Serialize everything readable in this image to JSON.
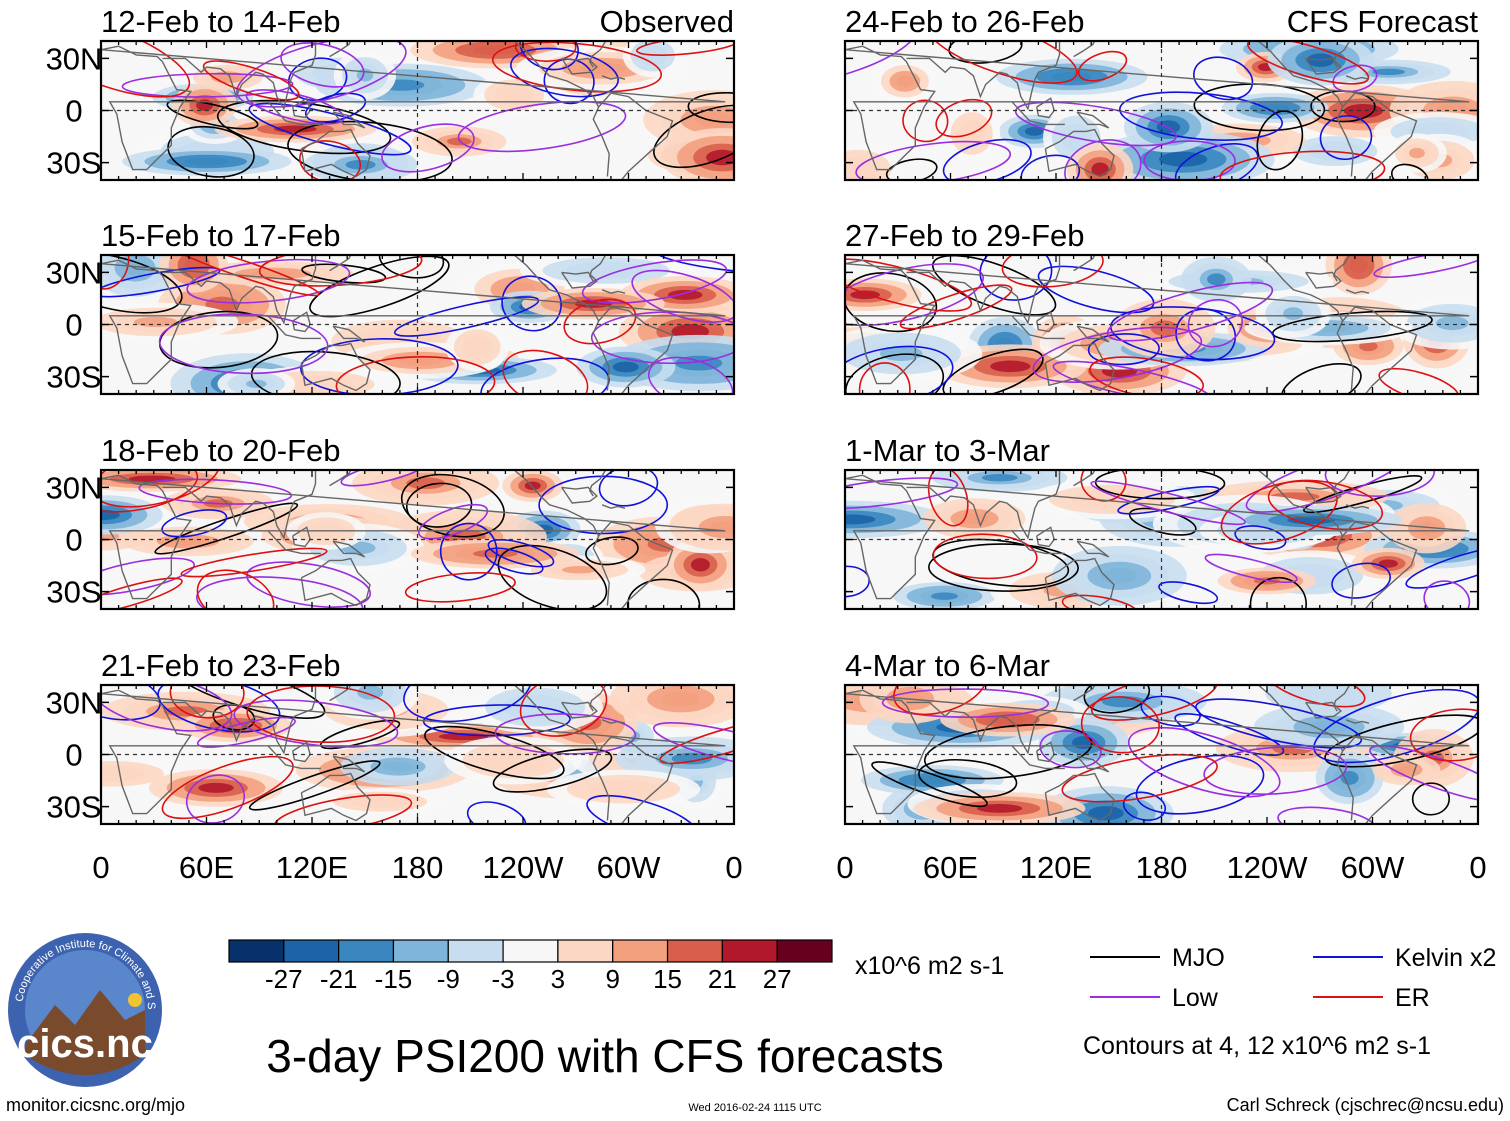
{
  "chart_data": {
    "type": "heatmap",
    "title": "3-day PSI200 with CFS forecasts",
    "variable": "PSI200 anomaly",
    "units": "x10^6 m2 s-1",
    "x_ticks": [
      "0",
      "60E",
      "120E",
      "180",
      "120W",
      "60W",
      "0"
    ],
    "y_ticks": [
      "30N",
      "0",
      "30S"
    ],
    "lon_range": [
      0,
      360
    ],
    "lat_range": [
      -40,
      40
    ],
    "panels_observed_label": "Observed",
    "panels_forecast_label": "CFS Forecast",
    "panels": [
      {
        "period": "12-Feb to 14-Feb",
        "source": "Observed",
        "column": 0,
        "row": 0
      },
      {
        "period": "15-Feb to 17-Feb",
        "source": "Observed",
        "column": 0,
        "row": 1
      },
      {
        "period": "18-Feb to 20-Feb",
        "source": "Observed",
        "column": 0,
        "row": 2
      },
      {
        "period": "21-Feb to 23-Feb",
        "source": "Observed",
        "column": 0,
        "row": 3
      },
      {
        "period": "24-Feb to 26-Feb",
        "source": "CFS Forecast",
        "column": 1,
        "row": 0
      },
      {
        "period": "27-Feb to 29-Feb",
        "source": "CFS Forecast",
        "column": 1,
        "row": 1
      },
      {
        "period": "1-Mar to 3-Mar",
        "source": "CFS Forecast",
        "column": 1,
        "row": 2
      },
      {
        "period": "4-Mar to 6-Mar",
        "source": "CFS Forecast",
        "column": 1,
        "row": 3
      }
    ],
    "colorbar": {
      "tick_labels": [
        "-27",
        "-21",
        "-15",
        "-9",
        "-3",
        "3",
        "9",
        "15",
        "21",
        "27"
      ],
      "colors": [
        "#08306b",
        "#1c63a8",
        "#3a87c0",
        "#7fb5d9",
        "#c8def0",
        "#f7f7f7",
        "#fcd7c3",
        "#f3a07f",
        "#d85f4c",
        "#b2182b",
        "#67001f"
      ],
      "units": "x10^6 m2 s-1"
    },
    "contour_legend": [
      {
        "name": "MJO",
        "color": "#000000"
      },
      {
        "name": "Kelvin x2",
        "color": "#1111dd"
      },
      {
        "name": "Low",
        "color": "#9a2ee0"
      },
      {
        "name": "ER",
        "color": "#dd1111"
      }
    ],
    "contour_note": "Contours at 4, 12 x10^6 m2 s-1"
  },
  "footer": {
    "url": "monitor.cicsnc.org/mjo",
    "timestamp": "Wed 2016-02-24 1115 UTC",
    "author": "Carl Schreck (cjschrec@ncsu.edu)"
  },
  "logo": {
    "text": "cics.nc",
    "ring_text": "Cooperative Institute for Climate and Satellites"
  }
}
